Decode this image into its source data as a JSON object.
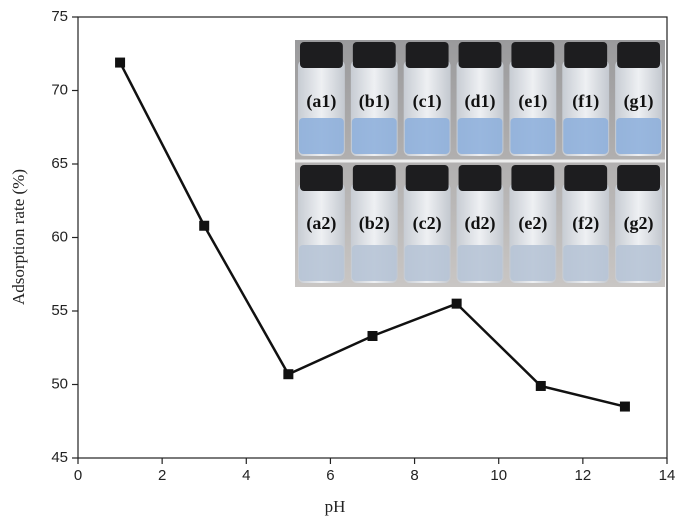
{
  "chart_data": {
    "type": "line",
    "x_label": "pH",
    "y_label": "Adsorption rate (%)",
    "x": [
      1,
      3,
      5,
      7,
      9,
      11,
      13
    ],
    "values": [
      71.9,
      60.8,
      50.7,
      53.3,
      55.5,
      49.9,
      48.5
    ],
    "color": "#111111",
    "xlim": [
      0,
      14
    ],
    "xticks": [
      0,
      2,
      4,
      6,
      8,
      10,
      12,
      14
    ],
    "ylim": [
      45,
      75
    ],
    "yticks": [
      45,
      50,
      55,
      60,
      65,
      70,
      75
    ],
    "grid": false,
    "annotations": [
      "(a1)",
      "(b1)",
      "(c1)",
      "(d1)",
      "(e1)",
      "(f1)",
      "(g1)",
      "(a2)",
      "(b2)",
      "(c2)",
      "(d2)",
      "(e2)",
      "(f2)",
      "(g2)"
    ]
  }
}
